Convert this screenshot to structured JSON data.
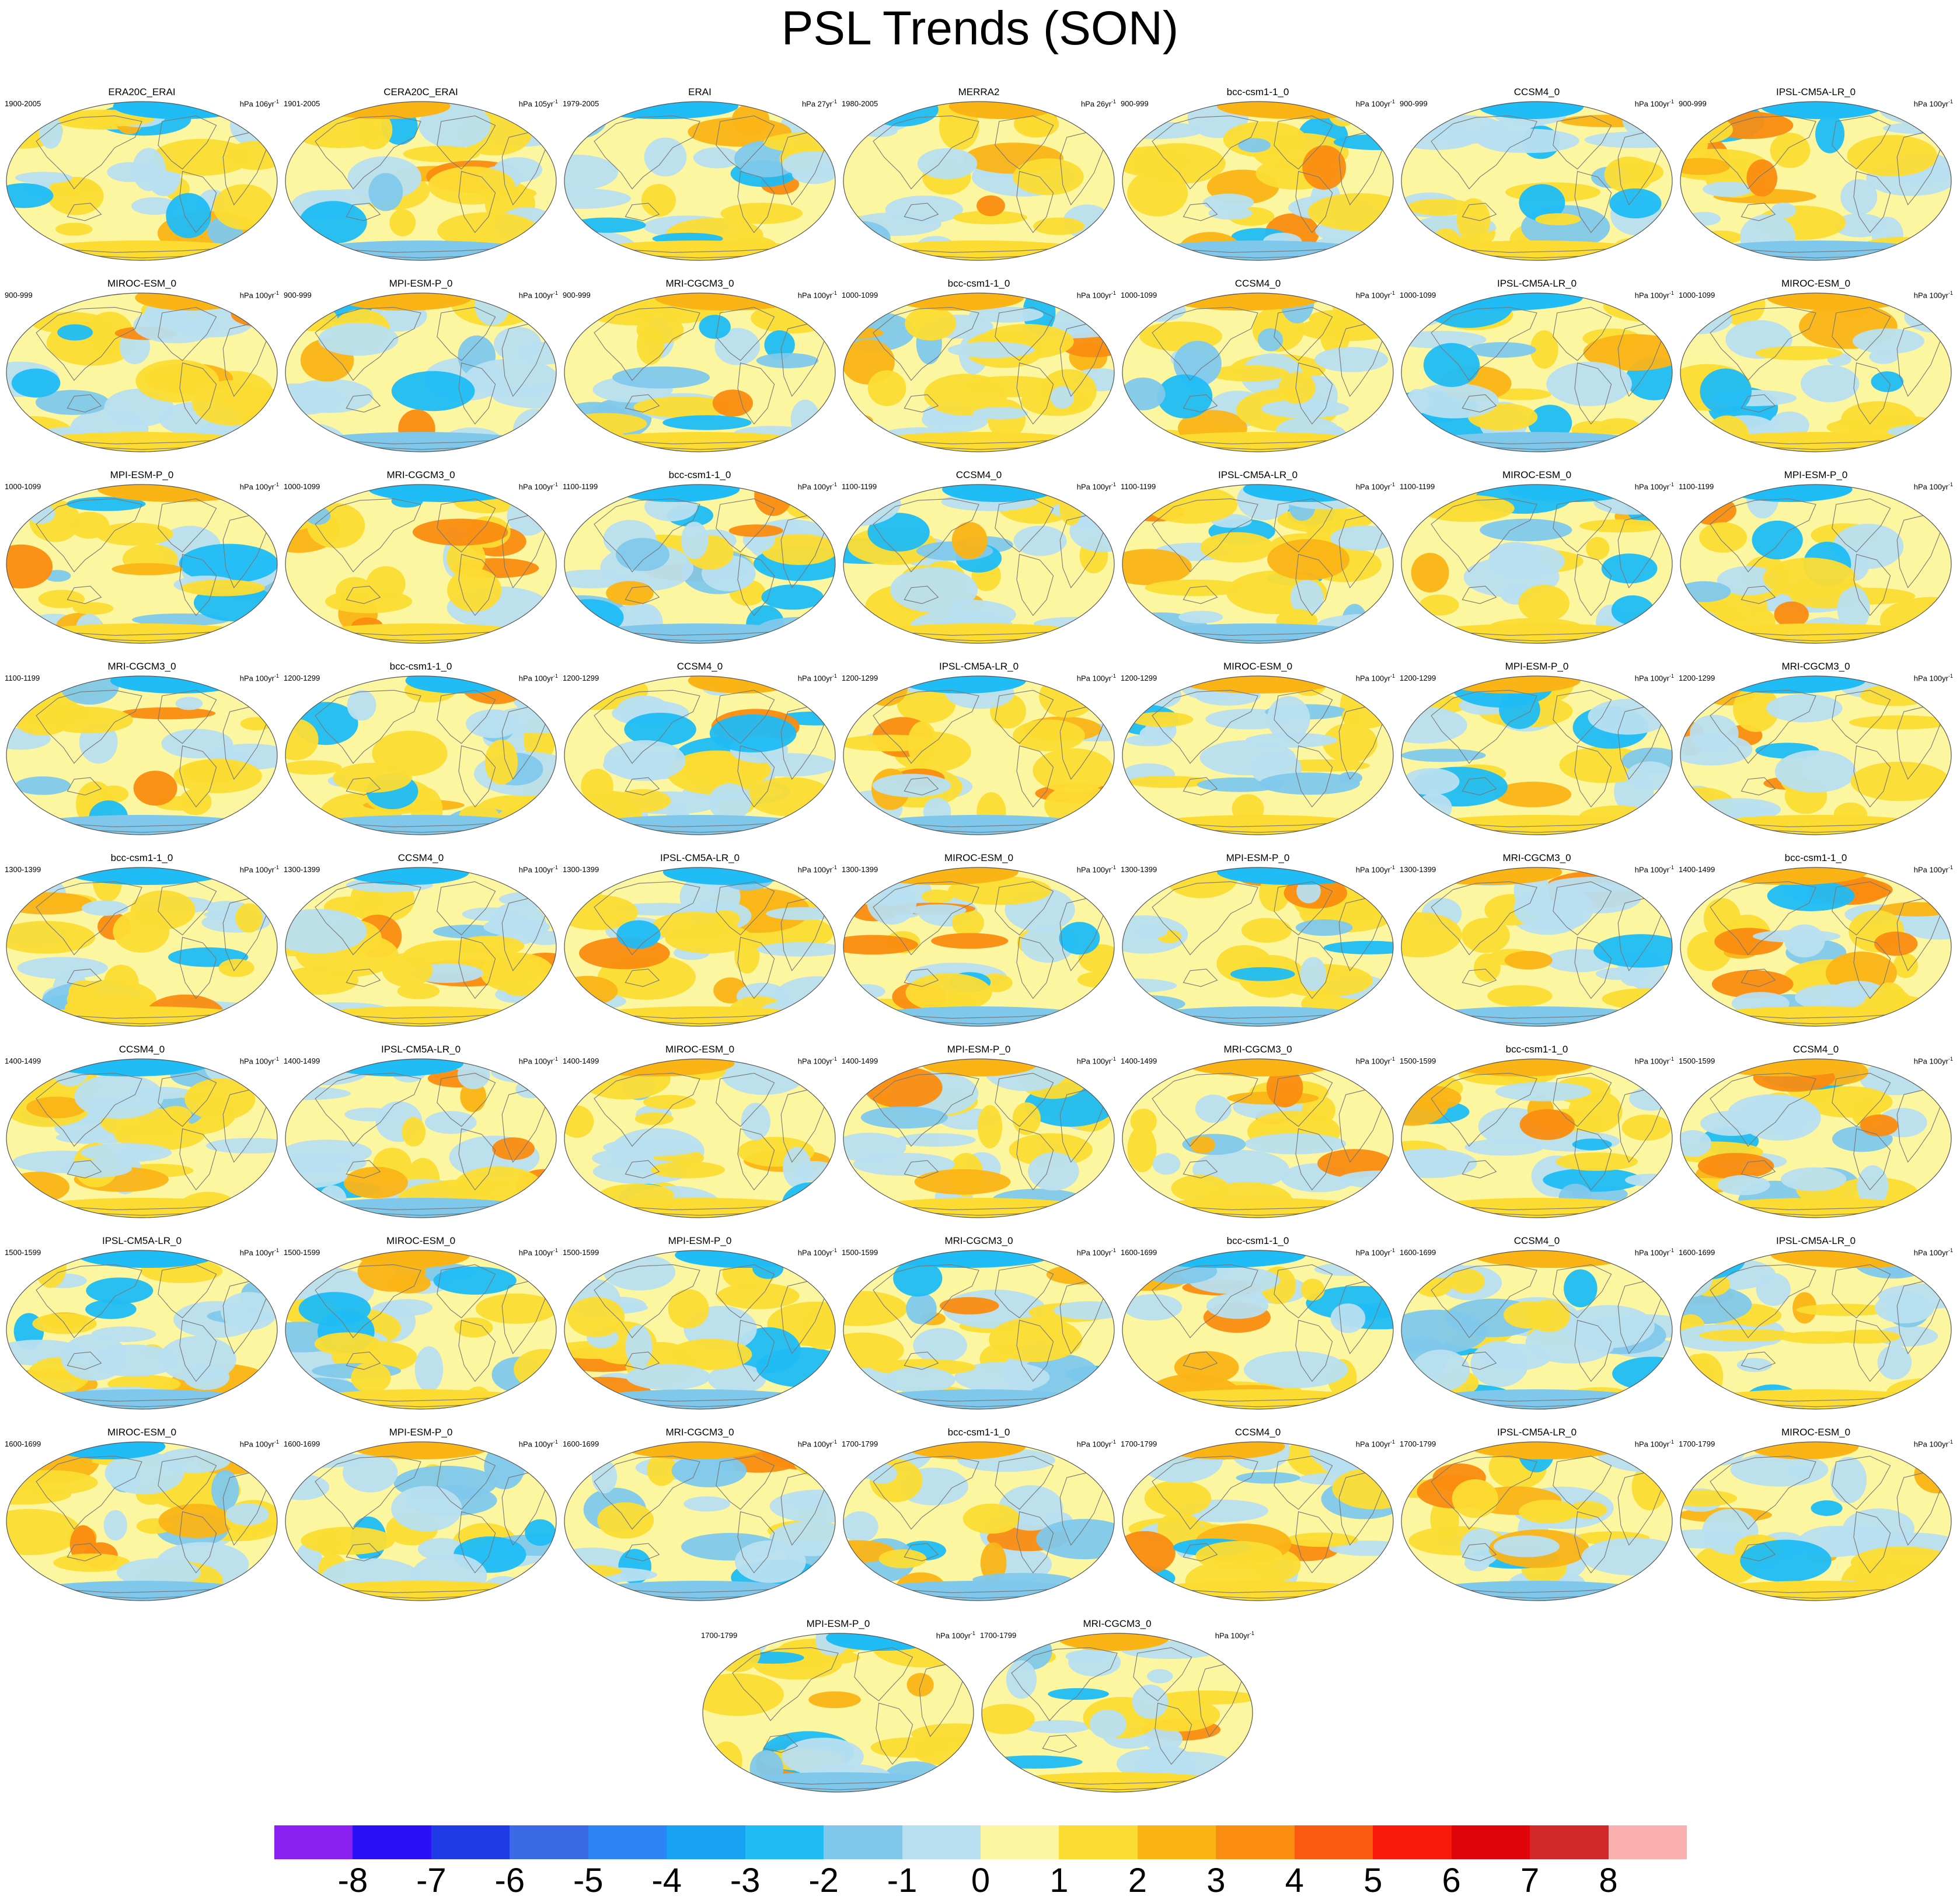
{
  "title": "PSL Trends (SON)",
  "units_prefix": "hPa",
  "units_suffix": "yr",
  "units_exp": "-1",
  "colorbar": {
    "colors": [
      "#8a1ff2",
      "#2a10f5",
      "#1e3be6",
      "#3a6ae6",
      "#2b83f5",
      "#18a0f2",
      "#1fbcf5",
      "#7fc8ec",
      "#b8dff0",
      "#fdf6a0",
      "#fcdc33",
      "#fbb416",
      "#fa8c10",
      "#fa5a10",
      "#fa1a0c",
      "#e0050a",
      "#d2282a",
      "#fbb0b0"
    ],
    "labels": [
      "-8",
      "-7",
      "-6",
      "-5",
      "-4",
      "-3",
      "-2",
      "-1",
      "0",
      "1",
      "2",
      "3",
      "4",
      "5",
      "6",
      "7",
      "8"
    ]
  },
  "panels": [
    {
      "name": "ERA20C_ERAI",
      "period": "1900-2005",
      "units_n": "106"
    },
    {
      "name": "CERA20C_ERAI",
      "period": "1901-2005",
      "units_n": "105"
    },
    {
      "name": "ERAI",
      "period": "1979-2005",
      "units_n": "27"
    },
    {
      "name": "MERRA2",
      "period": "1980-2005",
      "units_n": "26"
    },
    {
      "name": "bcc-csm1-1_0",
      "period": "900-999",
      "units_n": "100"
    },
    {
      "name": "CCSM4_0",
      "period": "900-999",
      "units_n": "100"
    },
    {
      "name": "IPSL-CM5A-LR_0",
      "period": "900-999",
      "units_n": "100"
    },
    {
      "name": "MIROC-ESM_0",
      "period": "900-999",
      "units_n": "100"
    },
    {
      "name": "MPI-ESM-P_0",
      "period": "900-999",
      "units_n": "100"
    },
    {
      "name": "MRI-CGCM3_0",
      "period": "900-999",
      "units_n": "100"
    },
    {
      "name": "bcc-csm1-1_0",
      "period": "1000-1099",
      "units_n": "100"
    },
    {
      "name": "CCSM4_0",
      "period": "1000-1099",
      "units_n": "100"
    },
    {
      "name": "IPSL-CM5A-LR_0",
      "period": "1000-1099",
      "units_n": "100"
    },
    {
      "name": "MIROC-ESM_0",
      "period": "1000-1099",
      "units_n": "100"
    },
    {
      "name": "MPI-ESM-P_0",
      "period": "1000-1099",
      "units_n": "100"
    },
    {
      "name": "MRI-CGCM3_0",
      "period": "1000-1099",
      "units_n": "100"
    },
    {
      "name": "bcc-csm1-1_0",
      "period": "1100-1199",
      "units_n": "100"
    },
    {
      "name": "CCSM4_0",
      "period": "1100-1199",
      "units_n": "100"
    },
    {
      "name": "IPSL-CM5A-LR_0",
      "period": "1100-1199",
      "units_n": "100"
    },
    {
      "name": "MIROC-ESM_0",
      "period": "1100-1199",
      "units_n": "100"
    },
    {
      "name": "MPI-ESM-P_0",
      "period": "1100-1199",
      "units_n": "100"
    },
    {
      "name": "MRI-CGCM3_0",
      "period": "1100-1199",
      "units_n": "100"
    },
    {
      "name": "bcc-csm1-1_0",
      "period": "1200-1299",
      "units_n": "100"
    },
    {
      "name": "CCSM4_0",
      "period": "1200-1299",
      "units_n": "100"
    },
    {
      "name": "IPSL-CM5A-LR_0",
      "period": "1200-1299",
      "units_n": "100"
    },
    {
      "name": "MIROC-ESM_0",
      "period": "1200-1299",
      "units_n": "100"
    },
    {
      "name": "MPI-ESM-P_0",
      "period": "1200-1299",
      "units_n": "100"
    },
    {
      "name": "MRI-CGCM3_0",
      "period": "1200-1299",
      "units_n": "100"
    },
    {
      "name": "bcc-csm1-1_0",
      "period": "1300-1399",
      "units_n": "100"
    },
    {
      "name": "CCSM4_0",
      "period": "1300-1399",
      "units_n": "100"
    },
    {
      "name": "IPSL-CM5A-LR_0",
      "period": "1300-1399",
      "units_n": "100"
    },
    {
      "name": "MIROC-ESM_0",
      "period": "1300-1399",
      "units_n": "100"
    },
    {
      "name": "MPI-ESM-P_0",
      "period": "1300-1399",
      "units_n": "100"
    },
    {
      "name": "MRI-CGCM3_0",
      "period": "1300-1399",
      "units_n": "100"
    },
    {
      "name": "bcc-csm1-1_0",
      "period": "1400-1499",
      "units_n": "100"
    },
    {
      "name": "CCSM4_0",
      "period": "1400-1499",
      "units_n": "100"
    },
    {
      "name": "IPSL-CM5A-LR_0",
      "period": "1400-1499",
      "units_n": "100"
    },
    {
      "name": "MIROC-ESM_0",
      "period": "1400-1499",
      "units_n": "100"
    },
    {
      "name": "MPI-ESM-P_0",
      "period": "1400-1499",
      "units_n": "100"
    },
    {
      "name": "MRI-CGCM3_0",
      "period": "1400-1499",
      "units_n": "100"
    },
    {
      "name": "bcc-csm1-1_0",
      "period": "1500-1599",
      "units_n": "100"
    },
    {
      "name": "CCSM4_0",
      "period": "1500-1599",
      "units_n": "100"
    },
    {
      "name": "IPSL-CM5A-LR_0",
      "period": "1500-1599",
      "units_n": "100"
    },
    {
      "name": "MIROC-ESM_0",
      "period": "1500-1599",
      "units_n": "100"
    },
    {
      "name": "MPI-ESM-P_0",
      "period": "1500-1599",
      "units_n": "100"
    },
    {
      "name": "MRI-CGCM3_0",
      "period": "1500-1599",
      "units_n": "100"
    },
    {
      "name": "bcc-csm1-1_0",
      "period": "1600-1699",
      "units_n": "100"
    },
    {
      "name": "CCSM4_0",
      "period": "1600-1699",
      "units_n": "100"
    },
    {
      "name": "IPSL-CM5A-LR_0",
      "period": "1600-1699",
      "units_n": "100"
    },
    {
      "name": "MIROC-ESM_0",
      "period": "1600-1699",
      "units_n": "100"
    },
    {
      "name": "MPI-ESM-P_0",
      "period": "1600-1699",
      "units_n": "100"
    },
    {
      "name": "MRI-CGCM3_0",
      "period": "1600-1699",
      "units_n": "100"
    },
    {
      "name": "bcc-csm1-1_0",
      "period": "1700-1799",
      "units_n": "100"
    },
    {
      "name": "CCSM4_0",
      "period": "1700-1799",
      "units_n": "100"
    },
    {
      "name": "IPSL-CM5A-LR_0",
      "period": "1700-1799",
      "units_n": "100"
    },
    {
      "name": "MIROC-ESM_0",
      "period": "1700-1799",
      "units_n": "100"
    },
    {
      "name": "MPI-ESM-P_0",
      "period": "1700-1799",
      "units_n": "100"
    },
    {
      "name": "MRI-CGCM3_0",
      "period": "1700-1799",
      "units_n": "100"
    }
  ]
}
